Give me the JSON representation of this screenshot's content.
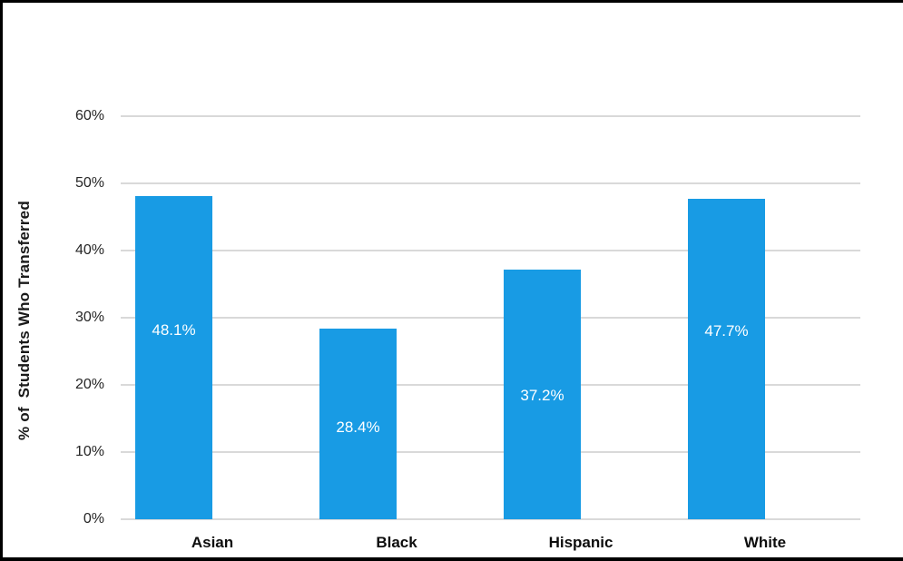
{
  "chart_data": {
    "type": "bar",
    "title": "",
    "categories": [
      "Asian",
      "Black",
      "Hispanic",
      "White"
    ],
    "values": [
      48.1,
      28.4,
      37.2,
      47.7
    ],
    "data_labels": [
      "48.1%",
      "28.4%",
      "37.2%",
      "47.7%"
    ],
    "xlabel": "",
    "ylabel": "% of  Students Who Transferred",
    "ylim": [
      0,
      60
    ],
    "ytick_values": [
      0,
      10,
      20,
      30,
      40,
      50,
      60
    ],
    "ytick_labels": [
      "0%",
      "10%",
      "20%",
      "30%",
      "40%",
      "50%",
      "60%"
    ],
    "grid": "horizontal",
    "legend": "none",
    "colors": {
      "bar": "#189BE4",
      "gridline": "#D9D9D9",
      "tick_text": "#262626",
      "category_text": "#0d0d0d",
      "data_label_text": "#FFFFFF",
      "frame_border": "#000000",
      "background": "#FFFFFF"
    }
  }
}
